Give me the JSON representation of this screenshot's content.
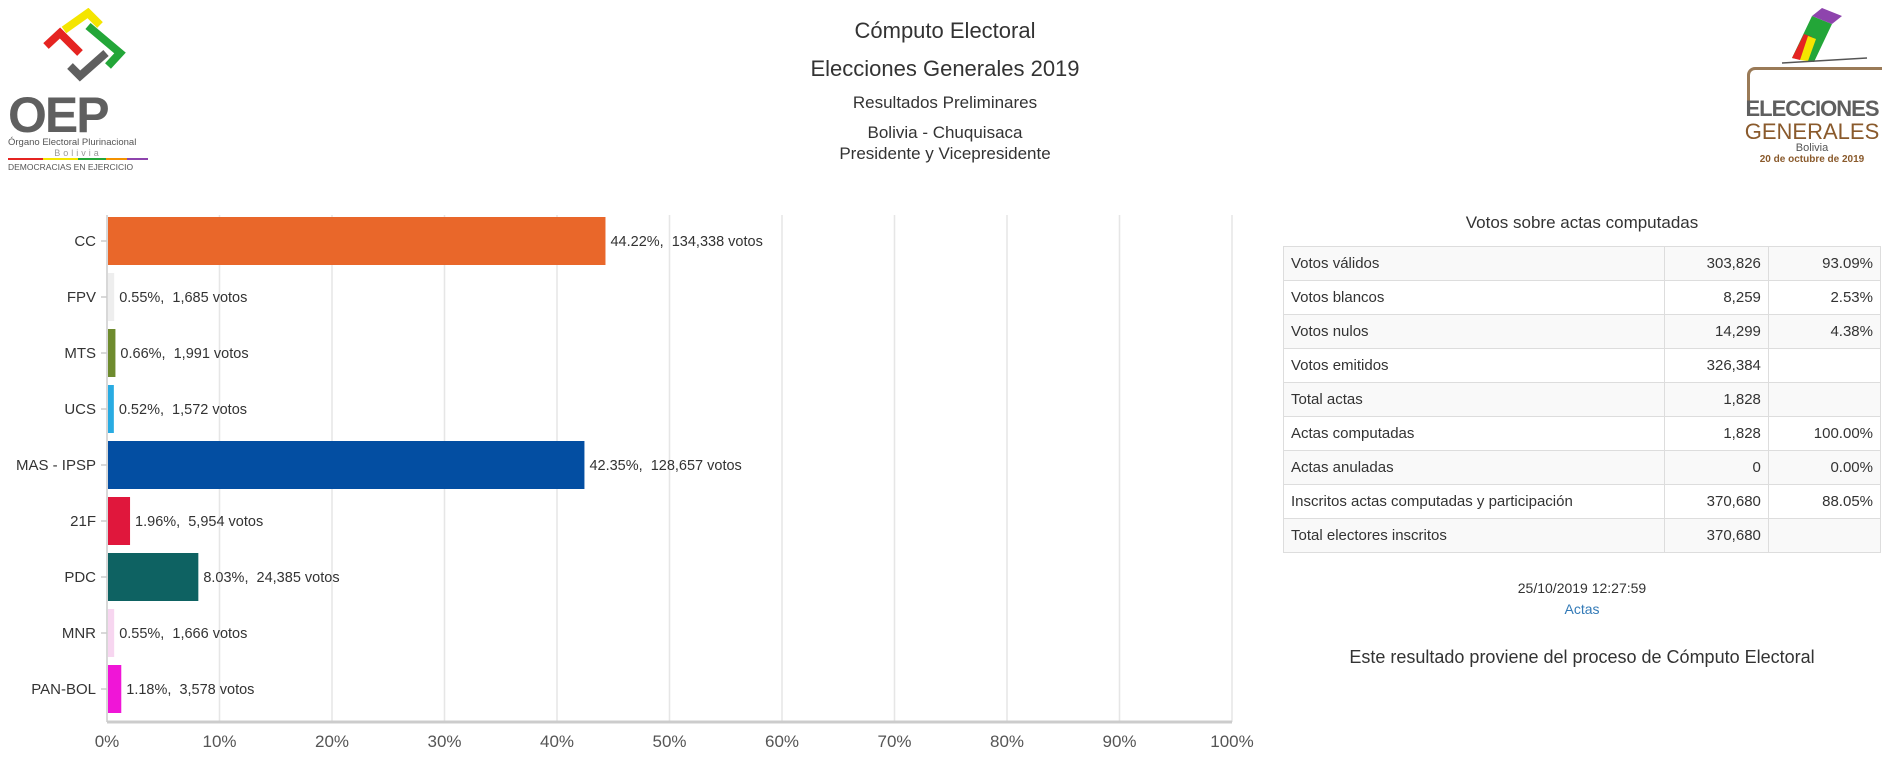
{
  "header": {
    "title": "Cómputo Electoral",
    "subtitle": "Elecciones Generales 2019",
    "results_type": "Resultados Preliminares",
    "location": "Bolivia - Chuquisaca",
    "office": "Presidente y Vicepresidente"
  },
  "logos": {
    "left": {
      "text": "OEP",
      "line1": "Órgano Electoral Plurinacional",
      "line2": "Bolivia",
      "line3": "DEMOCRACIAS EN EJERCICIO"
    },
    "right": {
      "line1": "ELECCIONES",
      "line2": "GENERALES",
      "line3": "Bolivia",
      "line4": "20 de octubre de 2019"
    }
  },
  "chart_data": {
    "type": "bar",
    "orientation": "horizontal",
    "categories": [
      "CC",
      "FPV",
      "MTS",
      "UCS",
      "MAS - IPSP",
      "21F",
      "PDC",
      "MNR",
      "PAN-BOL"
    ],
    "values": [
      44.22,
      0.55,
      0.66,
      0.52,
      42.35,
      1.96,
      8.03,
      0.55,
      1.18
    ],
    "votes": [
      134338,
      1685,
      1991,
      1572,
      128657,
      5954,
      24385,
      1666,
      3578
    ],
    "data_labels": [
      "44.22%,  134,338 votos",
      "0.55%,  1,685 votos",
      "0.66%,  1,991 votos",
      "0.52%,  1,572 votos",
      "42.35%,  128,657 votos",
      "1.96%,  5,954 votos",
      "8.03%,  24,385 votos",
      "0.55%,  1,666 votos",
      "1.18%,  3,578 votos"
    ],
    "colors": [
      "#e9672a",
      "#eeeeee",
      "#6e8b2e",
      "#29abe2",
      "#034ea2",
      "#e0173c",
      "#0e6262",
      "#f7d6f0",
      "#f015d7"
    ],
    "xlim": [
      0,
      100
    ],
    "xticks": [
      "0%",
      "10%",
      "20%",
      "30%",
      "40%",
      "50%",
      "60%",
      "70%",
      "80%",
      "90%",
      "100%"
    ],
    "grid": true
  },
  "summary": {
    "title": "Votos sobre actas computadas",
    "rows": [
      {
        "label": "Votos válidos",
        "value": "303,826",
        "pct": "93.09%"
      },
      {
        "label": "Votos blancos",
        "value": "8,259",
        "pct": "2.53%"
      },
      {
        "label": "Votos nulos",
        "value": "14,299",
        "pct": "4.38%"
      },
      {
        "label": "Votos emitidos",
        "value": "326,384",
        "pct": ""
      },
      {
        "label": "Total actas",
        "value": "1,828",
        "pct": ""
      },
      {
        "label": "Actas computadas",
        "value": "1,828",
        "pct": "100.00%"
      },
      {
        "label": "Actas anuladas",
        "value": "0",
        "pct": "0.00%"
      },
      {
        "label": "Inscritos actas computadas y participación",
        "value": "370,680",
        "pct": "88.05%"
      },
      {
        "label": "Total electores inscritos",
        "value": "370,680",
        "pct": ""
      }
    ],
    "timestamp": "25/10/2019 12:27:59",
    "actas_link": "Actas",
    "source_note": "Este resultado proviene del proceso de Cómputo Electoral"
  }
}
